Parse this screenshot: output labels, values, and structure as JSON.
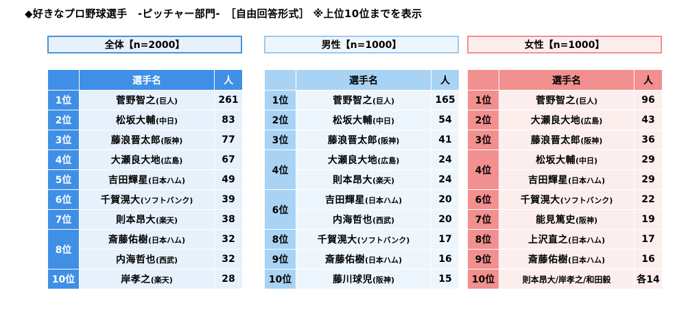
{
  "title": "◆好きなプロ野球選手　-ピッチャー部門-　［自由回答形式］ ※上位10位までを表示",
  "colors": {
    "all": {
      "border": "#4a90d9",
      "header_bg": "#e6f1fb",
      "rank_bg": "#3f8fe6",
      "th_bg": "#3f8fe6",
      "body_bg": "#e6f1fb",
      "th_text": "#ffffff",
      "rank_text": "#ffffff"
    },
    "male": {
      "border": "#9cc9ee",
      "header_bg": "#eef6fd",
      "rank_bg": "#a9d3f4",
      "th_bg": "#a9d3f4",
      "body_bg": "#eef6fd",
      "th_text": "#000000",
      "rank_text": "#000000"
    },
    "female": {
      "border": "#f08f8f",
      "header_bg": "#fdeeee",
      "rank_bg": "#f28f8f",
      "th_bg": "#f28f8f",
      "body_bg": "#fdeeee",
      "th_text": "#000000",
      "rank_text": "#000000"
    }
  },
  "groups": [
    {
      "key": "all",
      "label": "全体【n=2000】",
      "columns": {
        "name": "選手名",
        "count": "人"
      },
      "rows": [
        {
          "rank": "1位",
          "name": "菅野智之",
          "team": "(巨人)",
          "count": "261"
        },
        {
          "rank": "2位",
          "name": "松坂大輔",
          "team": "(中日)",
          "count": "83"
        },
        {
          "rank": "3位",
          "name": "藤浪晋太郎",
          "team": "(阪神)",
          "count": "77"
        },
        {
          "rank": "4位",
          "name": "大瀬良大地",
          "team": "(広島)",
          "count": "67"
        },
        {
          "rank": "5位",
          "name": "吉田輝星",
          "team": "(日本ハム)",
          "count": "49"
        },
        {
          "rank": "6位",
          "name": "千賀滉大",
          "team": "(ソフトバンク)",
          "count": "39"
        },
        {
          "rank": "7位",
          "name": "則本昂大",
          "team": "(楽天)",
          "count": "38"
        },
        {
          "rank": "8位",
          "name": "斎藤佑樹",
          "team": "(日本ハム)",
          "count": "32"
        },
        {
          "rank": "8位",
          "name": "内海哲也",
          "team": "(西武)",
          "count": "32"
        },
        {
          "rank": "10位",
          "name": "岸孝之",
          "team": "(楽天)",
          "count": "28"
        }
      ]
    },
    {
      "key": "male",
      "label": "男性【n=1000】",
      "columns": {
        "name": "選手名",
        "count": "人"
      },
      "rows": [
        {
          "rank": "1位",
          "name": "菅野智之",
          "team": "(巨人)",
          "count": "165"
        },
        {
          "rank": "2位",
          "name": "松坂大輔",
          "team": "(中日)",
          "count": "54"
        },
        {
          "rank": "3位",
          "name": "藤浪晋太郎",
          "team": "(阪神)",
          "count": "41"
        },
        {
          "rank": "4位",
          "name": "大瀬良大地",
          "team": "(広島)",
          "count": "24"
        },
        {
          "rank": "4位",
          "name": "則本昂大",
          "team": "(楽天)",
          "count": "24"
        },
        {
          "rank": "6位",
          "name": "吉田輝星",
          "team": "(日本ハム)",
          "count": "20"
        },
        {
          "rank": "6位",
          "name": "内海哲也",
          "team": "(西武)",
          "count": "20"
        },
        {
          "rank": "8位",
          "name": "千賀滉大",
          "team": "(ソフトバンク)",
          "count": "17"
        },
        {
          "rank": "9位",
          "name": "斎藤佑樹",
          "team": "(日本ハム)",
          "count": "16"
        },
        {
          "rank": "10位",
          "name": "藤川球児",
          "team": "(阪神)",
          "count": "15"
        }
      ]
    },
    {
      "key": "female",
      "label": "女性【n=1000】",
      "columns": {
        "name": "選手名",
        "count": "人"
      },
      "rows": [
        {
          "rank": "1位",
          "name": "菅野智之",
          "team": "(巨人)",
          "count": "96"
        },
        {
          "rank": "2位",
          "name": "大瀬良大地",
          "team": "(広島)",
          "count": "43"
        },
        {
          "rank": "3位",
          "name": "藤浪晋太郎",
          "team": "(阪神)",
          "count": "36"
        },
        {
          "rank": "4位",
          "name": "松坂大輔",
          "team": "(中日)",
          "count": "29"
        },
        {
          "rank": "4位",
          "name": "吉田輝星",
          "team": "(日本ハム)",
          "count": "29"
        },
        {
          "rank": "6位",
          "name": "千賀滉大",
          "team": "(ソフトバンク)",
          "count": "22"
        },
        {
          "rank": "7位",
          "name": "能見篤史",
          "team": "(阪神)",
          "count": "19"
        },
        {
          "rank": "8位",
          "name": "上沢直之",
          "team": "(日本ハム)",
          "count": "17"
        },
        {
          "rank": "9位",
          "name": "斎藤佑樹",
          "team": "(日本ハム)",
          "count": "16"
        },
        {
          "rank": "10位",
          "name": "則本昂大/岸孝之/和田毅",
          "team": "",
          "count": "各14"
        }
      ]
    }
  ]
}
